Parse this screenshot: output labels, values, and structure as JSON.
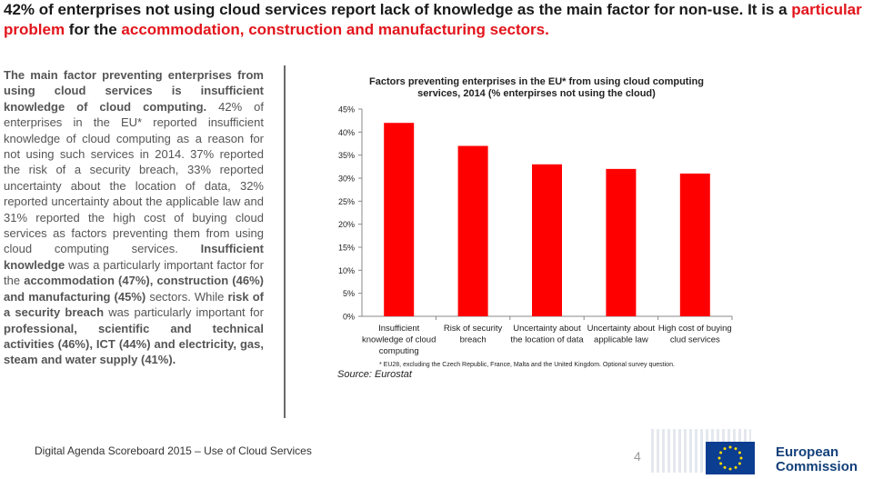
{
  "headline": {
    "part1": "42% of enterprises not using cloud services report lack of knowledge as the main factor for non-use. It is a",
    "part2": "particular problem",
    "part3": "for the",
    "part4": "accommodation, construction and manufacturing sectors."
  },
  "body": {
    "p1": "The main factor preventing enterprises from using cloud services is insufficient knowledge of cloud computing.",
    "p2": "42% of enterprises in the EU* reported insufficient knowledge of cloud computing as a reason for not using such services in 2014. 37% reported the risk of a security breach, 33% reported uncertainty about the location of data, 32% reported uncertainty about the applicable law and 31% reported the high cost of buying cloud services as factors preventing them from using cloud computing services.",
    "p3a": "Insufficient knowledge",
    "p3b": "was a particularly important factor for the",
    "p3c": "accommodation (47%), construction (46%) and manufacturing (45%)",
    "p3d": "sectors. While",
    "p3e": "risk of a security breach",
    "p3f": "was particularly important for",
    "p3g": "professional, scientific and technical activities (46%), ICT (44%) and electricity, gas, steam and water supply (41%)."
  },
  "chart_data": {
    "type": "bar",
    "title": "Factors preventing enterprises in the EU* from using cloud computing services, 2014 (% enterpirses not using the cloud)",
    "categories": [
      [
        "Insufficient",
        "knowledge of cloud",
        "computing"
      ],
      [
        "Risk of security",
        "breach"
      ],
      [
        "Uncertainty about",
        "the location of data"
      ],
      [
        "Uncertainty about",
        "applicable law"
      ],
      [
        "High cost of buying",
        "clud services"
      ]
    ],
    "values": [
      42,
      37,
      33,
      32,
      31
    ],
    "ylim": [
      0,
      45
    ],
    "yticks": [
      "0%",
      "5%",
      "10%",
      "15%",
      "20%",
      "25%",
      "30%",
      "35%",
      "40%",
      "45%"
    ],
    "bar_color": "#ff0000",
    "footnote": "* EU28, excluding the Czech Republic, France, Malta and the United Kingdom. Optional survey question.",
    "source": "Source: Eurostat"
  },
  "footer": {
    "text": "Digital Agenda Scoreboard 2015 – Use of Cloud Services",
    "page": "4",
    "logo_line1": "European",
    "logo_line2": "Commission"
  },
  "colors": {
    "accent": "#e3141b",
    "bar": "#ff0000",
    "brand": "#13407a"
  }
}
